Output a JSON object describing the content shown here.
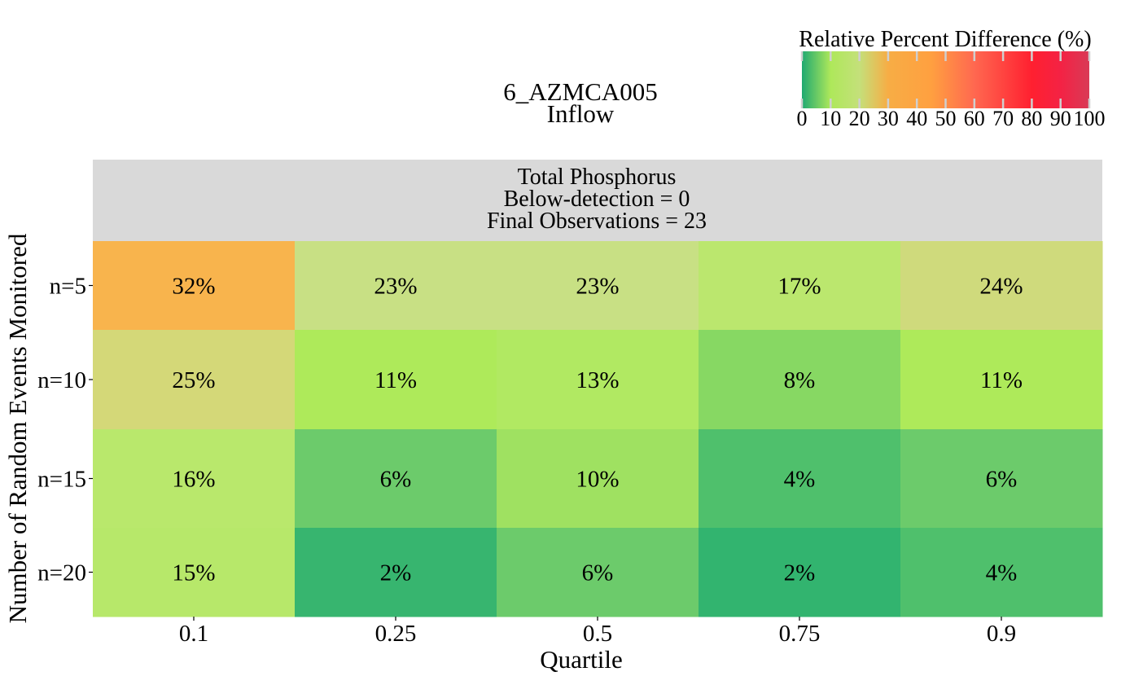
{
  "figure": {
    "title_line1": "6_AZMCA005",
    "title_line2": "Inflow"
  },
  "colorbar": {
    "label": "Relative Percent Difference (%)",
    "ticks": [
      "0",
      "10",
      "20",
      "30",
      "40",
      "50",
      "60",
      "70",
      "80",
      "90",
      "100"
    ],
    "min": 0,
    "max": 100,
    "colors": [
      {
        "v": 0,
        "c": "#1fa971"
      },
      {
        "v": 10,
        "c": "#aee85a"
      },
      {
        "v": 20,
        "c": "#c4e07a"
      },
      {
        "v": 30,
        "c": "#f7ad45"
      },
      {
        "v": 45,
        "c": "#ffa040"
      },
      {
        "v": 60,
        "c": "#ff6850"
      },
      {
        "v": 80,
        "c": "#ff2030"
      },
      {
        "v": 90,
        "c": "#f42244"
      },
      {
        "v": 100,
        "c": "#d93a56"
      }
    ]
  },
  "panel": {
    "line1": "Total Phosphorus",
    "line2": "Below-detection = 0",
    "line3": "Final Observations = 23",
    "background": "#d9d9d9"
  },
  "chart_data": {
    "type": "heatmap",
    "xlabel": "Quartile",
    "ylabel": "Number of Random Events Monitored",
    "x": [
      "0.1",
      "0.25",
      "0.5",
      "0.75",
      "0.9"
    ],
    "y": [
      "n=5",
      "n=10",
      "n=15",
      "n=20"
    ],
    "values": [
      [
        32,
        23,
        23,
        17,
        24
      ],
      [
        25,
        11,
        13,
        8,
        11
      ],
      [
        16,
        6,
        10,
        4,
        6
      ],
      [
        15,
        2,
        6,
        2,
        4
      ]
    ],
    "labels": [
      [
        "32%",
        "23%",
        "23%",
        "17%",
        "24%"
      ],
      [
        "25%",
        "11%",
        "13%",
        "8%",
        "11%"
      ],
      [
        "16%",
        "6%",
        "10%",
        "4%",
        "6%"
      ],
      [
        "15%",
        "2%",
        "6%",
        "2%",
        "4%"
      ]
    ],
    "cell_colors": [
      [
        "#f8b44d",
        "#c8e084",
        "#c8e084",
        "#bbe76e",
        "#cfda7c"
      ],
      [
        "#d4d878",
        "#aeea5a",
        "#b1e962",
        "#87d863",
        "#aeea5a"
      ],
      [
        "#b9e86c",
        "#6ccb6b",
        "#9fe161",
        "#4fc06c",
        "#6ccb6b"
      ],
      [
        "#b7e86a",
        "#37b56f",
        "#6ccb6b",
        "#32b46f",
        "#4fc06c"
      ]
    ]
  }
}
